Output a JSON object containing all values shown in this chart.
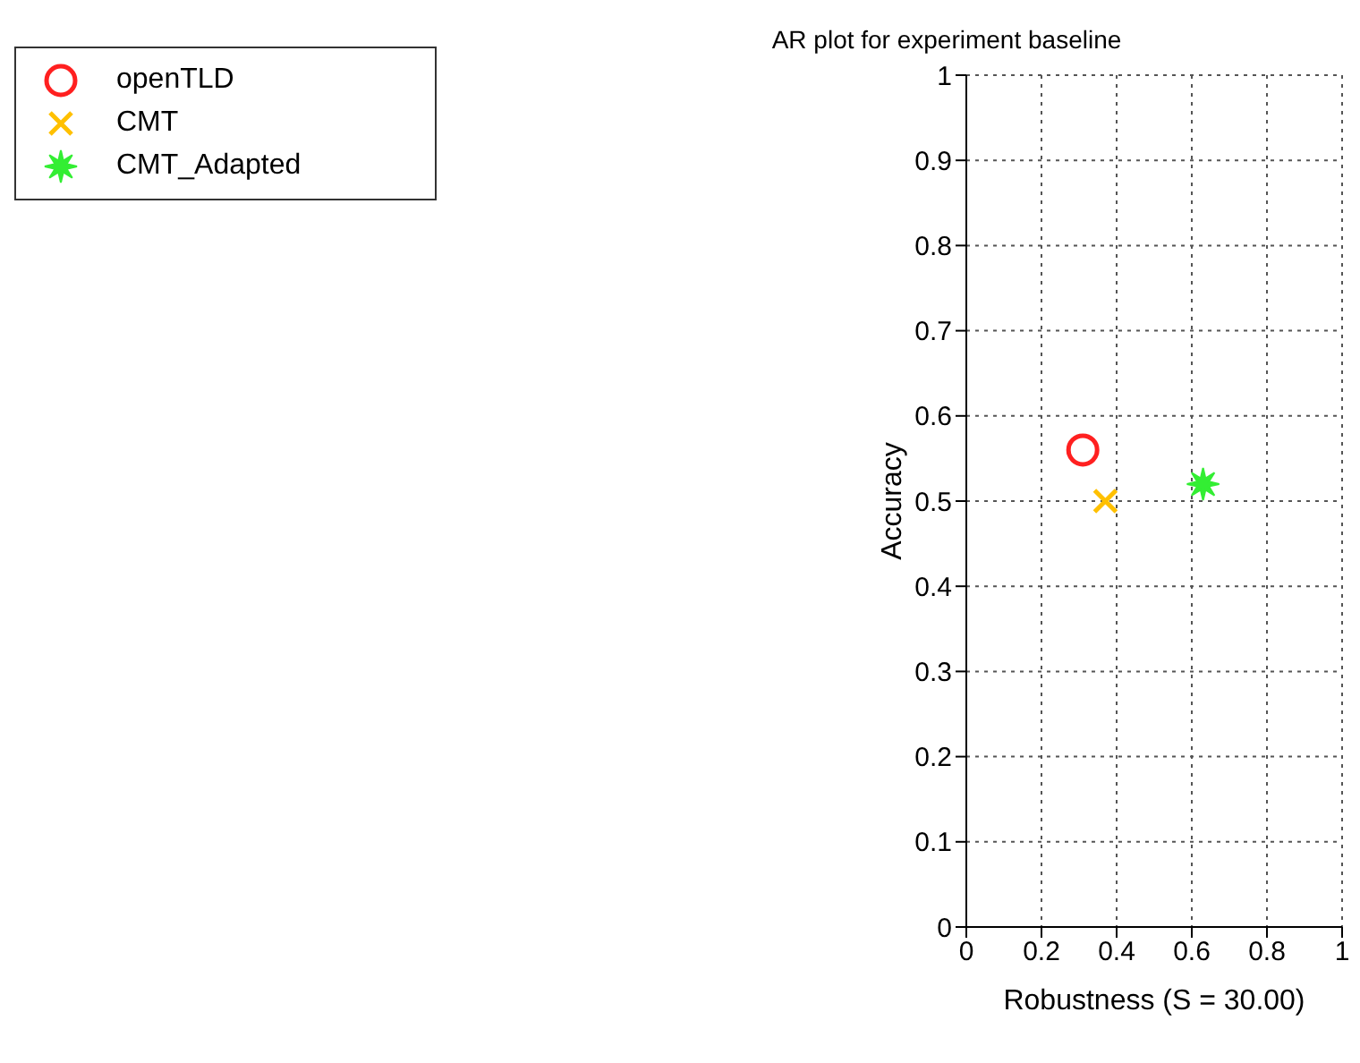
{
  "chart_data": {
    "type": "scatter",
    "title": "AR plot for experiment baseline",
    "xlabel": "Robustness (S = 30.00)",
    "ylabel": "Accuracy",
    "series": [
      {
        "name": "openTLD",
        "color": "#ff2020",
        "marker": "circle",
        "x": [
          0.31
        ],
        "values": [
          0.56
        ]
      },
      {
        "name": "CMT",
        "color": "#ffc000",
        "marker": "cross",
        "x": [
          0.37
        ],
        "values": [
          0.5
        ]
      },
      {
        "name": "CMT_Adapted",
        "color": "#33ee33",
        "marker": "star",
        "x": [
          0.63
        ],
        "values": [
          0.52
        ]
      }
    ],
    "xlim": [
      0,
      1
    ],
    "xticks": [
      0,
      0.2,
      0.4,
      0.6,
      0.8,
      1
    ],
    "ylim": [
      0,
      1
    ],
    "yticks": [
      0,
      0.1,
      0.2,
      0.3,
      0.4,
      0.5,
      0.6,
      0.7,
      0.8,
      0.9,
      1
    ],
    "grid": true,
    "legend": "top left"
  }
}
